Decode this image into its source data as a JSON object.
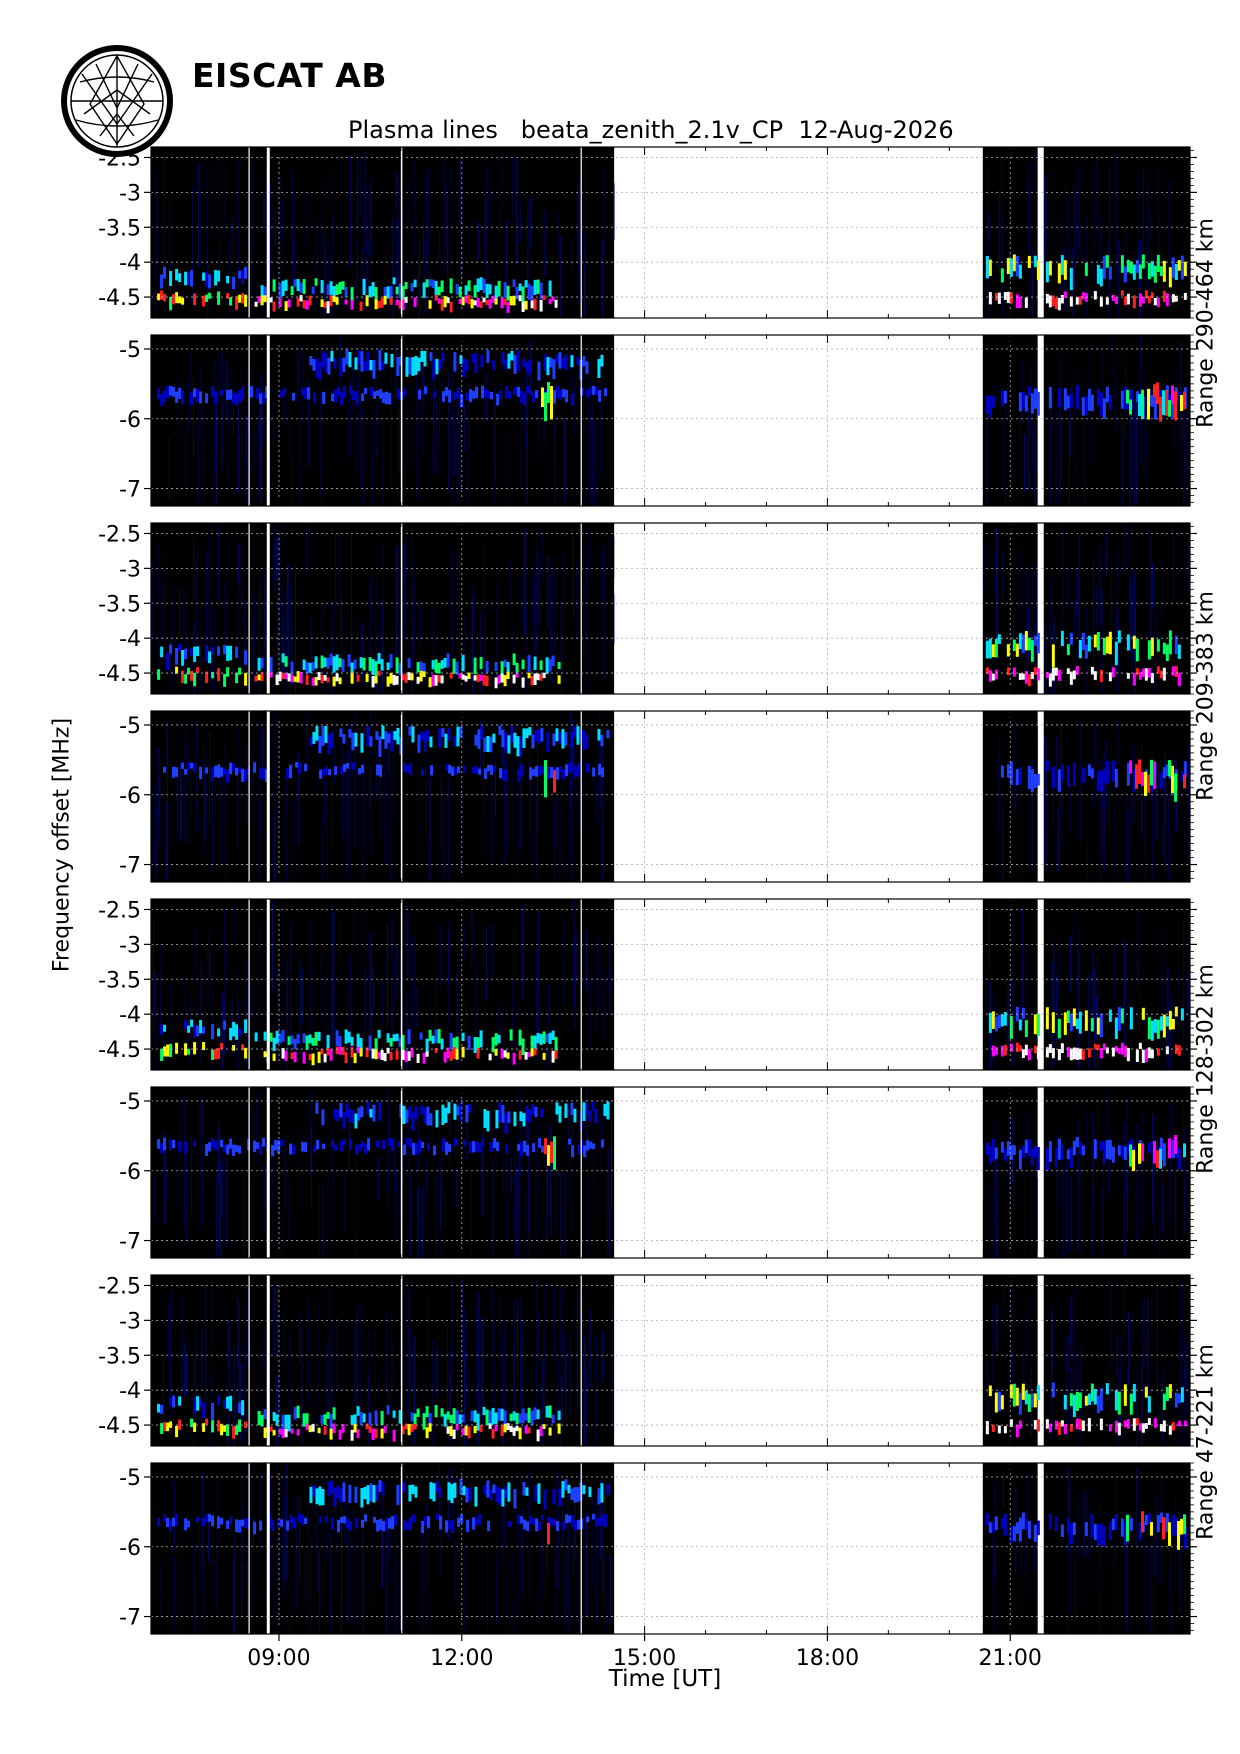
{
  "header": {
    "brand": "EISCAT AB",
    "title": "Plasma lines   beata_zenith_2.1v_CP  12-Aug-2026"
  },
  "axes": {
    "ylabel": "Frequency offset [MHz]",
    "xlabel": "Time [UT]"
  },
  "range_labels": [
    "Range 290-464 km",
    "Range 209-383 km",
    "Range 128-302 km",
    "Range 47-221 km"
  ],
  "chart_data": {
    "type": "heatmap",
    "title": "Plasma lines   beata_zenith_2.1v_CP  12-Aug-2026",
    "xlabel": "Time [UT]",
    "ylabel": "Frequency offset [MHz]",
    "x_unit": "hours UT",
    "xlim": [
      6.9,
      23.95
    ],
    "x_ticks": [
      9,
      12,
      15,
      18,
      21
    ],
    "x_tick_labels": [
      "09:00",
      "12:00",
      "15:00",
      "18:00",
      "21:00"
    ],
    "grid": true,
    "colormap": [
      "#000000",
      "#000060",
      "#0000c0",
      "#2040ff",
      "#00e0ff",
      "#00ff60",
      "#ffff00",
      "#ff2020",
      "#ff00ff",
      "#ffffff"
    ],
    "data_gaps_hours": [
      [
        14.5,
        20.55
      ],
      [
        21.45,
        21.55
      ]
    ],
    "panels": [
      {
        "range": "Range 290-464 km",
        "band": "upper",
        "ylim": [
          -4.8,
          -2.35
        ],
        "y_ticks": [
          -2.5,
          -3,
          -3.5,
          -4,
          -4.5
        ],
        "y_tick_labels": [
          "-2.5",
          "-3",
          "-3.5",
          "-4",
          "-4.5"
        ],
        "x_tick_labels_shown": false
      },
      {
        "range": "Range 290-464 km",
        "band": "lower",
        "ylim": [
          -7.25,
          -4.8
        ],
        "y_ticks": [
          -5,
          -6,
          -7
        ],
        "y_tick_labels": [
          "-5",
          "-6",
          "-7"
        ],
        "x_tick_labels_shown": false
      },
      {
        "range": "Range 209-383 km",
        "band": "upper",
        "ylim": [
          -4.8,
          -2.35
        ],
        "y_ticks": [
          -2.5,
          -3,
          -3.5,
          -4,
          -4.5
        ],
        "y_tick_labels": [
          "-2.5",
          "-3",
          "-3.5",
          "-4",
          "-4.5"
        ],
        "x_tick_labels_shown": false
      },
      {
        "range": "Range 209-383 km",
        "band": "lower",
        "ylim": [
          -7.25,
          -4.8
        ],
        "y_ticks": [
          -5,
          -6,
          -7
        ],
        "y_tick_labels": [
          "-5",
          "-6",
          "-7"
        ],
        "x_tick_labels_shown": false
      },
      {
        "range": "Range 128-302 km",
        "band": "upper",
        "ylim": [
          -4.8,
          -2.35
        ],
        "y_ticks": [
          -2.5,
          -3,
          -3.5,
          -4,
          -4.5
        ],
        "y_tick_labels": [
          "-2.5",
          "-3",
          "-3.5",
          "-4",
          "-4.5"
        ],
        "x_tick_labels_shown": false
      },
      {
        "range": "Range 128-302 km",
        "band": "lower",
        "ylim": [
          -7.25,
          -4.8
        ],
        "y_ticks": [
          -5,
          -6,
          -7
        ],
        "y_tick_labels": [
          "-5",
          "-6",
          "-7"
        ],
        "x_tick_labels_shown": false
      },
      {
        "range": "Range 47-221 km",
        "band": "upper",
        "ylim": [
          -4.8,
          -2.35
        ],
        "y_ticks": [
          -2.5,
          -3,
          -3.5,
          -4,
          -4.5
        ],
        "y_tick_labels": [
          "-2.5",
          "-3",
          "-3.5",
          "-4",
          "-4.5"
        ],
        "x_tick_labels_shown": false
      },
      {
        "range": "Range 47-221 km",
        "band": "lower",
        "ylim": [
          -7.25,
          -4.8
        ],
        "y_ticks": [
          -5,
          -6,
          -7
        ],
        "y_tick_labels": [
          "-5",
          "-6",
          "-7"
        ],
        "x_tick_labels_shown": true
      }
    ]
  }
}
